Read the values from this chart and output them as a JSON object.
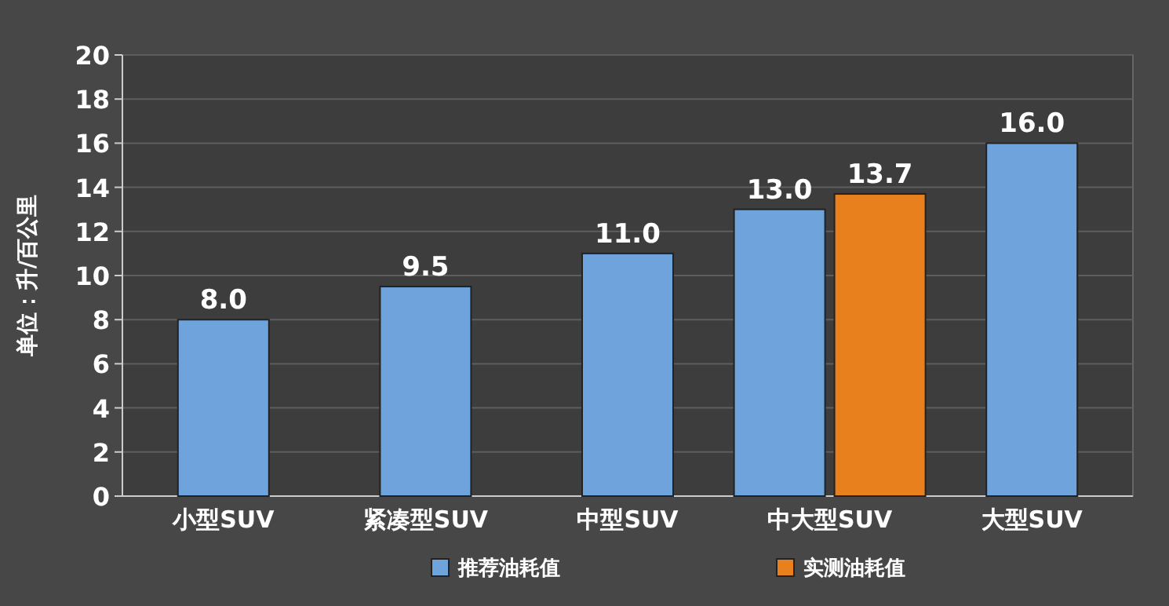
{
  "chart_data": {
    "type": "bar",
    "ylabel": "单位：升/百公里",
    "categories": [
      "小型SUV",
      "紧凑型SUV",
      "中型SUV",
      "中大型SUV",
      "大型SUV"
    ],
    "series": [
      {
        "name": "推荐油耗值",
        "color": "#6fa3dc",
        "values": [
          8.0,
          9.5,
          11.0,
          13.0,
          16.0
        ],
        "value_labels": [
          "8.0",
          "9.5",
          "11.0",
          "13.0",
          "16.0"
        ]
      },
      {
        "name": "实测油耗值",
        "color": "#e8801e",
        "values": [
          null,
          null,
          null,
          13.7,
          null
        ],
        "value_labels": [
          null,
          null,
          null,
          "13.7",
          null
        ]
      }
    ],
    "ylim": [
      0,
      20
    ],
    "yticks": [
      0,
      2,
      4,
      6,
      8,
      10,
      12,
      14,
      16,
      18,
      20
    ],
    "grid": "y",
    "legend": "bottom"
  }
}
